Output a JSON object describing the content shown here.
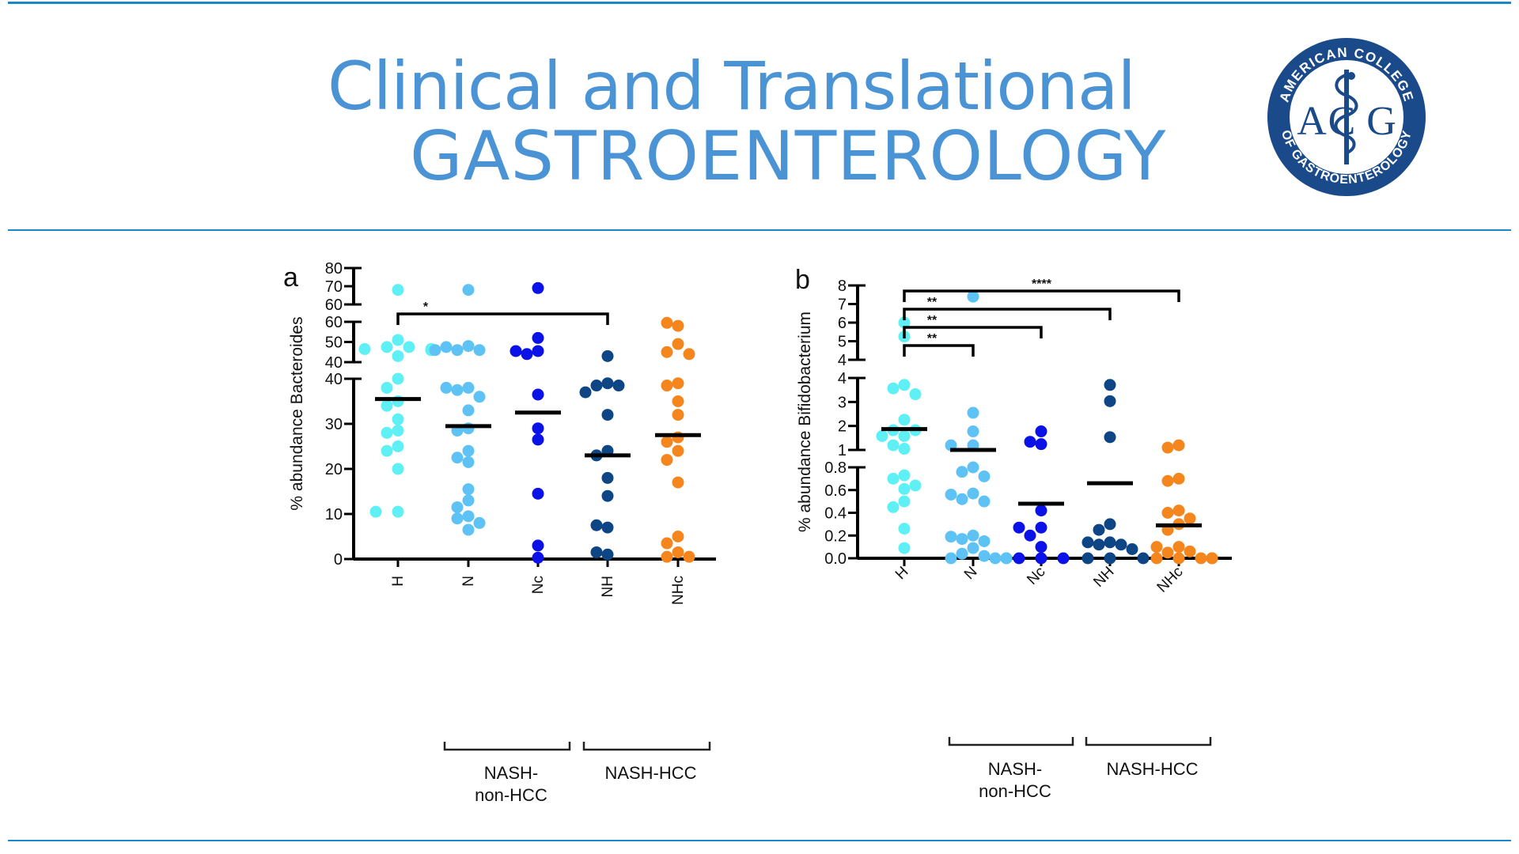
{
  "header": {
    "title_line1": "Clinical and Translational",
    "title_line2": "GASTROENTEROLOGY",
    "logo": {
      "top_text": "AMERICAN COLLEGE",
      "bottom_text": "OF GASTROENTEROLOGY",
      "initials_left": "A",
      "initials_center": "C",
      "initials_right": "G",
      "icon": "caduceus-icon"
    },
    "brand_color": "#4a94d6",
    "rule_color": "#1a87c9",
    "logo_color": "#1a4a8a"
  },
  "chart_data": [
    {
      "panel": "a",
      "type": "scatter",
      "title": "",
      "ylabel": "% abundance Bacteroides",
      "xlabel": "",
      "categories": [
        "H",
        "N",
        "Nc",
        "NH",
        "NHc"
      ],
      "category_colors": [
        "#5ff0f5",
        "#5ec2f5",
        "#0a12e8",
        "#0d4585",
        "#f5861e"
      ],
      "y_axis_segments": [
        {
          "range": [
            0,
            40
          ],
          "ticks": [
            "0",
            "10",
            "20",
            "30",
            "40"
          ]
        },
        {
          "range": [
            40,
            60
          ],
          "ticks": [
            "40",
            "50",
            "60"
          ]
        },
        {
          "range": [
            60,
            80
          ],
          "ticks": [
            "60",
            "70",
            "80"
          ]
        }
      ],
      "series": [
        {
          "name": "H",
          "values": [
            68,
            51,
            47.5,
            47.5,
            46.5,
            46.5,
            46,
            46,
            43,
            40,
            38,
            35,
            34,
            31,
            28.5,
            28,
            25,
            24,
            20,
            10.5,
            10.5
          ],
          "median": 35.5
        },
        {
          "name": "N",
          "values": [
            68,
            48,
            47.5,
            46,
            46,
            46,
            38,
            38,
            37.5,
            36,
            33,
            29,
            28.5,
            24,
            22.5,
            21.5,
            15.5,
            13,
            11.5,
            9.5,
            9,
            8,
            6.5
          ],
          "median": 29.5
        },
        {
          "name": "Nc",
          "values": [
            69,
            52,
            45.5,
            45.5,
            44,
            36.5,
            29,
            26.5,
            14.5,
            3,
            0.3
          ],
          "median": 32.5
        },
        {
          "name": "NH",
          "values": [
            43,
            39,
            38.5,
            38.5,
            37,
            32,
            24,
            23,
            18,
            14,
            7,
            7.5,
            1,
            1.5
          ],
          "median": 23
        },
        {
          "name": "NHc",
          "values": [
            58,
            59.5,
            49,
            45,
            44,
            39,
            38.5,
            35,
            32,
            27,
            26,
            24,
            22,
            17,
            5,
            3.5,
            1.5,
            0.5,
            0.5
          ],
          "median": 27.5
        }
      ],
      "significance": [
        {
          "from": "H",
          "to": "NH",
          "label": "*"
        }
      ],
      "group_brackets": [
        {
          "label": "NASH-\nnon-HCC",
          "label_lines": [
            "NASH-",
            "non-HCC"
          ],
          "covers": [
            "N",
            "Nc"
          ]
        },
        {
          "label": "NASH-HCC",
          "label_lines": [
            "NASH-HCC"
          ],
          "covers": [
            "NH",
            "NHc"
          ]
        }
      ]
    },
    {
      "panel": "b",
      "type": "scatter",
      "title": "",
      "ylabel": "% abundance Bifidobacterium",
      "xlabel": "",
      "categories": [
        "H",
        "N",
        "Nc",
        "NH",
        "NHc"
      ],
      "category_colors": [
        "#5ff0f5",
        "#5ec2f5",
        "#0a12e8",
        "#0d4585",
        "#f5861e"
      ],
      "y_axis_segments": [
        {
          "range": [
            0,
            0.8
          ],
          "ticks": [
            "0.0",
            "0.2",
            "0.4",
            "0.6",
            "0.8"
          ]
        },
        {
          "range": [
            0.9,
            4
          ],
          "ticks": [
            "1",
            "2",
            "3",
            "4"
          ]
        },
        {
          "range": [
            4,
            8
          ],
          "ticks": [
            "4",
            "5",
            "6",
            "7",
            "8"
          ]
        }
      ],
      "series": [
        {
          "name": "H",
          "values": [
            6.0,
            5.25,
            3.7,
            3.55,
            3.3,
            2.2,
            1.75,
            1.75,
            1.5,
            1.5,
            1.1,
            0.95,
            0.73,
            0.7,
            0.64,
            0.61,
            0.5,
            0.45,
            0.26,
            0.09
          ],
          "median": 1.8
        },
        {
          "name": "N",
          "values": [
            7.4,
            2.5,
            1.7,
            1.1,
            1.1,
            0.8,
            0.76,
            0.72,
            0.57,
            0.56,
            0.52,
            0.5,
            0.2,
            0.19,
            0.17,
            0.15,
            0.09,
            0.04,
            0.02,
            0.0,
            0.0,
            0.0,
            0.0,
            0.0
          ],
          "median": 0.9
        },
        {
          "name": "Nc",
          "values": [
            1.7,
            1.25,
            1.15,
            0.42,
            0.27,
            0.27,
            0.2,
            0.1,
            0.0,
            0.0,
            0.0
          ],
          "median": 0.48
        },
        {
          "name": "NH",
          "values": [
            3.7,
            3.0,
            1.45,
            0.3,
            0.25,
            0.14,
            0.12,
            0.12,
            0.14,
            0.08,
            0.0,
            0.0,
            0.0
          ],
          "median": 0.66
        },
        {
          "name": "NHc",
          "values": [
            1.1,
            1.0,
            0.7,
            0.68,
            0.42,
            0.4,
            0.35,
            0.3,
            0.25,
            0.1,
            0.1,
            0.05,
            0.06,
            0.0,
            0.0,
            0.0,
            0.0,
            0.0,
            0.0
          ],
          "median": 0.29
        }
      ],
      "significance": [
        {
          "from": "H",
          "to": "N",
          "label": "**"
        },
        {
          "from": "H",
          "to": "Nc",
          "label": "**"
        },
        {
          "from": "H",
          "to": "NH",
          "label": "**"
        },
        {
          "from": "H",
          "to": "NHc",
          "label": "****"
        }
      ],
      "group_brackets": [
        {
          "label": "NASH-\nnon-HCC",
          "label_lines": [
            "NASH-",
            "non-HCC"
          ],
          "covers": [
            "N",
            "Nc"
          ]
        },
        {
          "label": "NASH-HCC",
          "label_lines": [
            "NASH-HCC"
          ],
          "covers": [
            "NH",
            "NHc"
          ]
        }
      ]
    }
  ]
}
